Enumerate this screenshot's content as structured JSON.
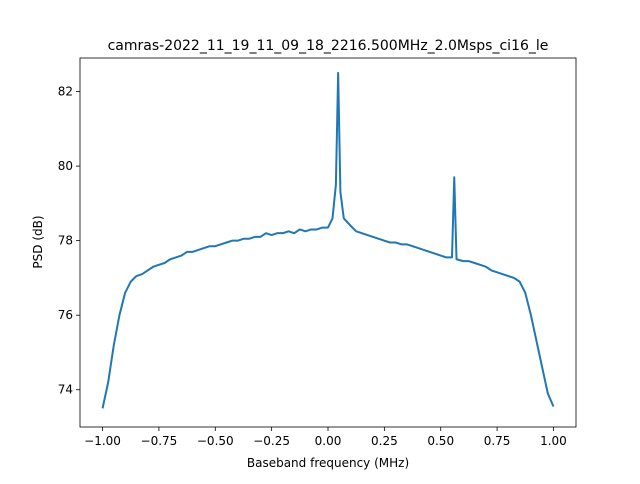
{
  "chart_data": {
    "type": "line",
    "title": "camras-2022_11_19_11_09_18_2216.500MHz_2.0Msps_ci16_le",
    "x_label": "Baseband frequency (MHz)",
    "y_label": "PSD (dB)",
    "x": [
      -1.0,
      -0.975,
      -0.95,
      -0.925,
      -0.9,
      -0.875,
      -0.85,
      -0.825,
      -0.8,
      -0.775,
      -0.75,
      -0.725,
      -0.7,
      -0.675,
      -0.65,
      -0.625,
      -0.6,
      -0.575,
      -0.55,
      -0.525,
      -0.5,
      -0.475,
      -0.45,
      -0.425,
      -0.4,
      -0.375,
      -0.35,
      -0.325,
      -0.3,
      -0.275,
      -0.25,
      -0.225,
      -0.2,
      -0.175,
      -0.15,
      -0.125,
      -0.1,
      -0.075,
      -0.05,
      -0.025,
      0.0,
      0.02,
      0.035,
      0.045,
      0.055,
      0.07,
      0.1,
      0.125,
      0.15,
      0.175,
      0.2,
      0.225,
      0.25,
      0.275,
      0.3,
      0.325,
      0.35,
      0.375,
      0.4,
      0.425,
      0.45,
      0.475,
      0.5,
      0.525,
      0.55,
      0.56,
      0.57,
      0.6,
      0.625,
      0.65,
      0.675,
      0.7,
      0.725,
      0.75,
      0.775,
      0.8,
      0.825,
      0.85,
      0.875,
      0.9,
      0.925,
      0.95,
      0.975,
      1.0
    ],
    "series": [
      {
        "name": "PSD",
        "color": "#1f77b4",
        "values": [
          73.5,
          74.2,
          75.2,
          76.0,
          76.6,
          76.9,
          77.05,
          77.1,
          77.2,
          77.3,
          77.35,
          77.4,
          77.5,
          77.55,
          77.6,
          77.7,
          77.7,
          77.75,
          77.8,
          77.85,
          77.85,
          77.9,
          77.95,
          78.0,
          78.0,
          78.05,
          78.05,
          78.1,
          78.1,
          78.2,
          78.15,
          78.2,
          78.2,
          78.25,
          78.2,
          78.3,
          78.25,
          78.3,
          78.3,
          78.35,
          78.35,
          78.6,
          79.5,
          82.5,
          79.3,
          78.6,
          78.4,
          78.25,
          78.2,
          78.15,
          78.1,
          78.05,
          78.0,
          77.95,
          77.95,
          77.9,
          77.9,
          77.85,
          77.8,
          77.75,
          77.7,
          77.65,
          77.6,
          77.55,
          77.55,
          79.7,
          77.5,
          77.45,
          77.45,
          77.4,
          77.35,
          77.3,
          77.2,
          77.15,
          77.1,
          77.05,
          77.0,
          76.9,
          76.6,
          76.0,
          75.3,
          74.6,
          73.9,
          73.55
        ]
      }
    ],
    "xlim": [
      -1.1,
      1.1
    ],
    "ylim": [
      73.0,
      82.9
    ],
    "xticks": [
      {
        "value": -1.0,
        "label": "−1.00"
      },
      {
        "value": -0.75,
        "label": "−0.75"
      },
      {
        "value": -0.5,
        "label": "−0.50"
      },
      {
        "value": -0.25,
        "label": "−0.25"
      },
      {
        "value": 0,
        "label": "0.00"
      },
      {
        "value": 0.25,
        "label": "0.25"
      },
      {
        "value": 0.5,
        "label": "0.50"
      },
      {
        "value": 0.75,
        "label": "0.75"
      },
      {
        "value": 1.0,
        "label": "1.00"
      }
    ],
    "yticks": [
      74,
      76,
      78,
      80,
      82
    ],
    "grid": false
  }
}
